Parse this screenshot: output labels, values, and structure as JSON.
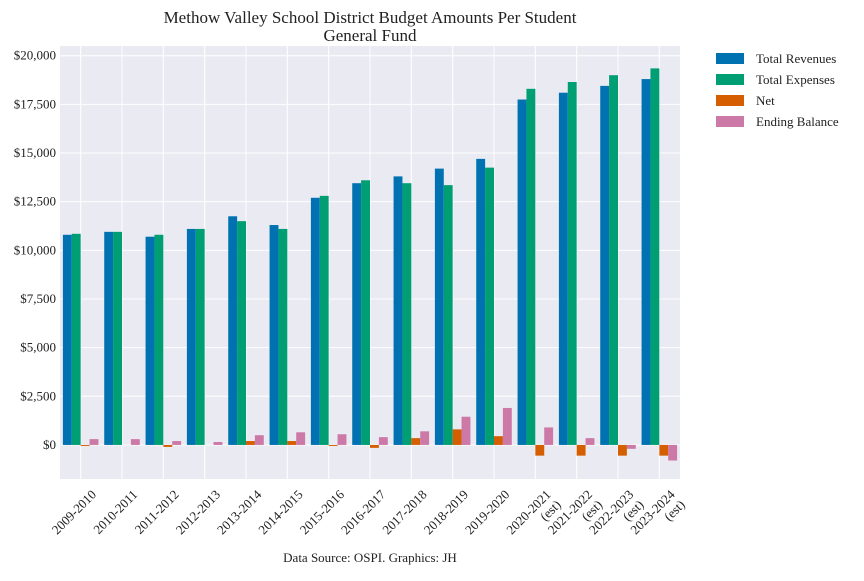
{
  "chart_data": {
    "type": "bar",
    "title": "Methow Valley School District Budget Amounts Per Student",
    "subtitle": "General Fund",
    "xlabel": "",
    "ylabel": "",
    "ylim": [
      -1750,
      20500
    ],
    "yticks": [
      0,
      2500,
      5000,
      7500,
      10000,
      12500,
      15000,
      17500,
      20000
    ],
    "ytick_labels": [
      "$0",
      "$2,500",
      "$5,000",
      "$7,500",
      "$10,000",
      "$12,500",
      "$15,000",
      "$17,500",
      "$20,000"
    ],
    "grid": true,
    "legend_position": "outside-top-right",
    "categories": [
      {
        "line1": "2009-2010",
        "line2": ""
      },
      {
        "line1": "2010-2011",
        "line2": ""
      },
      {
        "line1": "2011-2012",
        "line2": ""
      },
      {
        "line1": "2012-2013",
        "line2": ""
      },
      {
        "line1": "2013-2014",
        "line2": ""
      },
      {
        "line1": "2014-2015",
        "line2": ""
      },
      {
        "line1": "2015-2016",
        "line2": ""
      },
      {
        "line1": "2016-2017",
        "line2": ""
      },
      {
        "line1": "2017-2018",
        "line2": ""
      },
      {
        "line1": "2018-2019",
        "line2": ""
      },
      {
        "line1": "2019-2020",
        "line2": ""
      },
      {
        "line1": "2020-2021",
        "line2": "(est)"
      },
      {
        "line1": "2021-2022",
        "line2": "(est)"
      },
      {
        "line1": "2022-2023",
        "line2": "(est)"
      },
      {
        "line1": "2023-2024",
        "line2": "(est)"
      }
    ],
    "series": [
      {
        "name": "Total Revenues",
        "color": "#0072B2",
        "values": [
          10800,
          10950,
          10700,
          11100,
          11750,
          11300,
          12700,
          13450,
          13800,
          14200,
          14700,
          17750,
          18100,
          18450,
          18800
        ]
      },
      {
        "name": "Total Expenses",
        "color": "#009E73",
        "values": [
          10850,
          10950,
          10800,
          11100,
          11500,
          11100,
          12800,
          13600,
          13450,
          13350,
          14250,
          18300,
          18650,
          19000,
          19350
        ]
      },
      {
        "name": "Net",
        "color": "#D55E00",
        "values": [
          -50,
          0,
          -100,
          0,
          200,
          200,
          -50,
          -150,
          350,
          800,
          450,
          -550,
          -550,
          -550,
          -550
        ]
      },
      {
        "name": "Ending Balance",
        "color": "#CC79A7",
        "values": [
          300,
          300,
          200,
          150,
          500,
          650,
          550,
          400,
          700,
          1450,
          1900,
          900,
          350,
          -200,
          -800
        ]
      }
    ],
    "source": "Data Source: OSPI. Graphics: JH"
  },
  "style": {
    "plot_background": "#EAEAF2",
    "grid_color": "#FFFFFF",
    "text_color": "#222222"
  }
}
